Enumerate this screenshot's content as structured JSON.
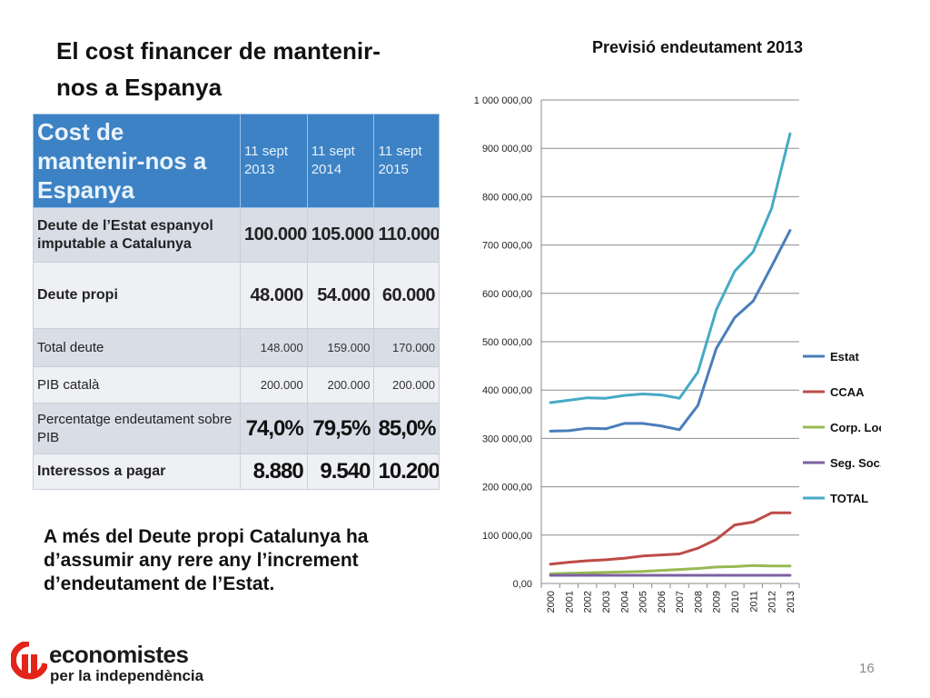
{
  "slide": {
    "title": "El cost financer de mantenir-nos a Espanya",
    "note": "A més del Deute propi Catalunya ha d’assumir any rere any l’increment d’endeutament de l’Estat.",
    "page_number": "16",
    "brand_name": "economistes",
    "brand_sub": "per la independència"
  },
  "table": {
    "header_title": "Cost de mantenir-nos a Espanya",
    "years": [
      "11 sept 2013",
      "11 sept 2014",
      "11 sept 2015"
    ],
    "rows": [
      {
        "label": "Deute de l’Estat espanyol imputable a Catalunya",
        "values": [
          "100.000",
          "105.000",
          "110.000"
        ]
      },
      {
        "label": "Deute propi",
        "values": [
          "48.000",
          "54.000",
          "60.000"
        ]
      },
      {
        "label": "Total deute",
        "values": [
          "148.000",
          "159.000",
          "170.000"
        ]
      },
      {
        "label": "PIB català",
        "values": [
          "200.000",
          "200.000",
          "200.000"
        ]
      },
      {
        "label": "Percentatge endeutament sobre PIB",
        "values": [
          "74,0%",
          "79,5%",
          "85,0%"
        ]
      },
      {
        "label": "Interessos a pagar",
        "values": [
          "8.880",
          "9.540",
          "10.200"
        ]
      }
    ]
  },
  "colors": {
    "estat": "#4a7ebb",
    "ccaa": "#be4b48",
    "corp": "#98b954",
    "segsoc": "#7d60a0",
    "total": "#46aac5",
    "brand_red": "#e3241b"
  },
  "chart_data": {
    "type": "line",
    "title": "Previsió endeutament 2013",
    "xlabel": "",
    "ylabel": "",
    "x": [
      "2000",
      "2001",
      "2002",
      "2003",
      "2004",
      "2005",
      "2006",
      "2007",
      "2008",
      "2009",
      "2010",
      "2011",
      "2012",
      "2013"
    ],
    "ylim": [
      0,
      1000000
    ],
    "yticks": [
      "0,00",
      "100 000,00",
      "200 000,00",
      "300 000,00",
      "400 000,00",
      "500 000,00",
      "600 000,00",
      "700 000,00",
      "800 000,00",
      "900 000,00",
      "1 000 000,00"
    ],
    "grid": true,
    "legend_position": "right",
    "series": [
      {
        "name": "Estat",
        "color": "#4a7ebb",
        "values": [
          315000,
          316000,
          321000,
          320000,
          331000,
          331000,
          326000,
          318000,
          368000,
          486000,
          550000,
          584000,
          656000,
          730000
        ]
      },
      {
        "name": "CCAA",
        "color": "#be4b48",
        "values": [
          40000,
          44000,
          47000,
          49000,
          52000,
          57000,
          59000,
          61000,
          73000,
          91000,
          121000,
          127000,
          146000,
          146000
        ]
      },
      {
        "name": "Corp. Locals",
        "color": "#98b954",
        "values": [
          20000,
          21000,
          22000,
          23000,
          24000,
          25000,
          27000,
          29000,
          31000,
          34000,
          35000,
          37000,
          36000,
          36000
        ]
      },
      {
        "name": "Seg. Soc.",
        "color": "#7d60a0",
        "values": [
          17000,
          17000,
          17000,
          17000,
          17000,
          17000,
          17000,
          17000,
          17000,
          17000,
          17000,
          17000,
          17000,
          17000
        ]
      },
      {
        "name": "TOTAL",
        "color": "#46aac5",
        "values": [
          374000,
          379000,
          384000,
          383000,
          389000,
          392000,
          390000,
          383000,
          437000,
          566000,
          646000,
          686000,
          776000,
          930000
        ]
      }
    ]
  }
}
